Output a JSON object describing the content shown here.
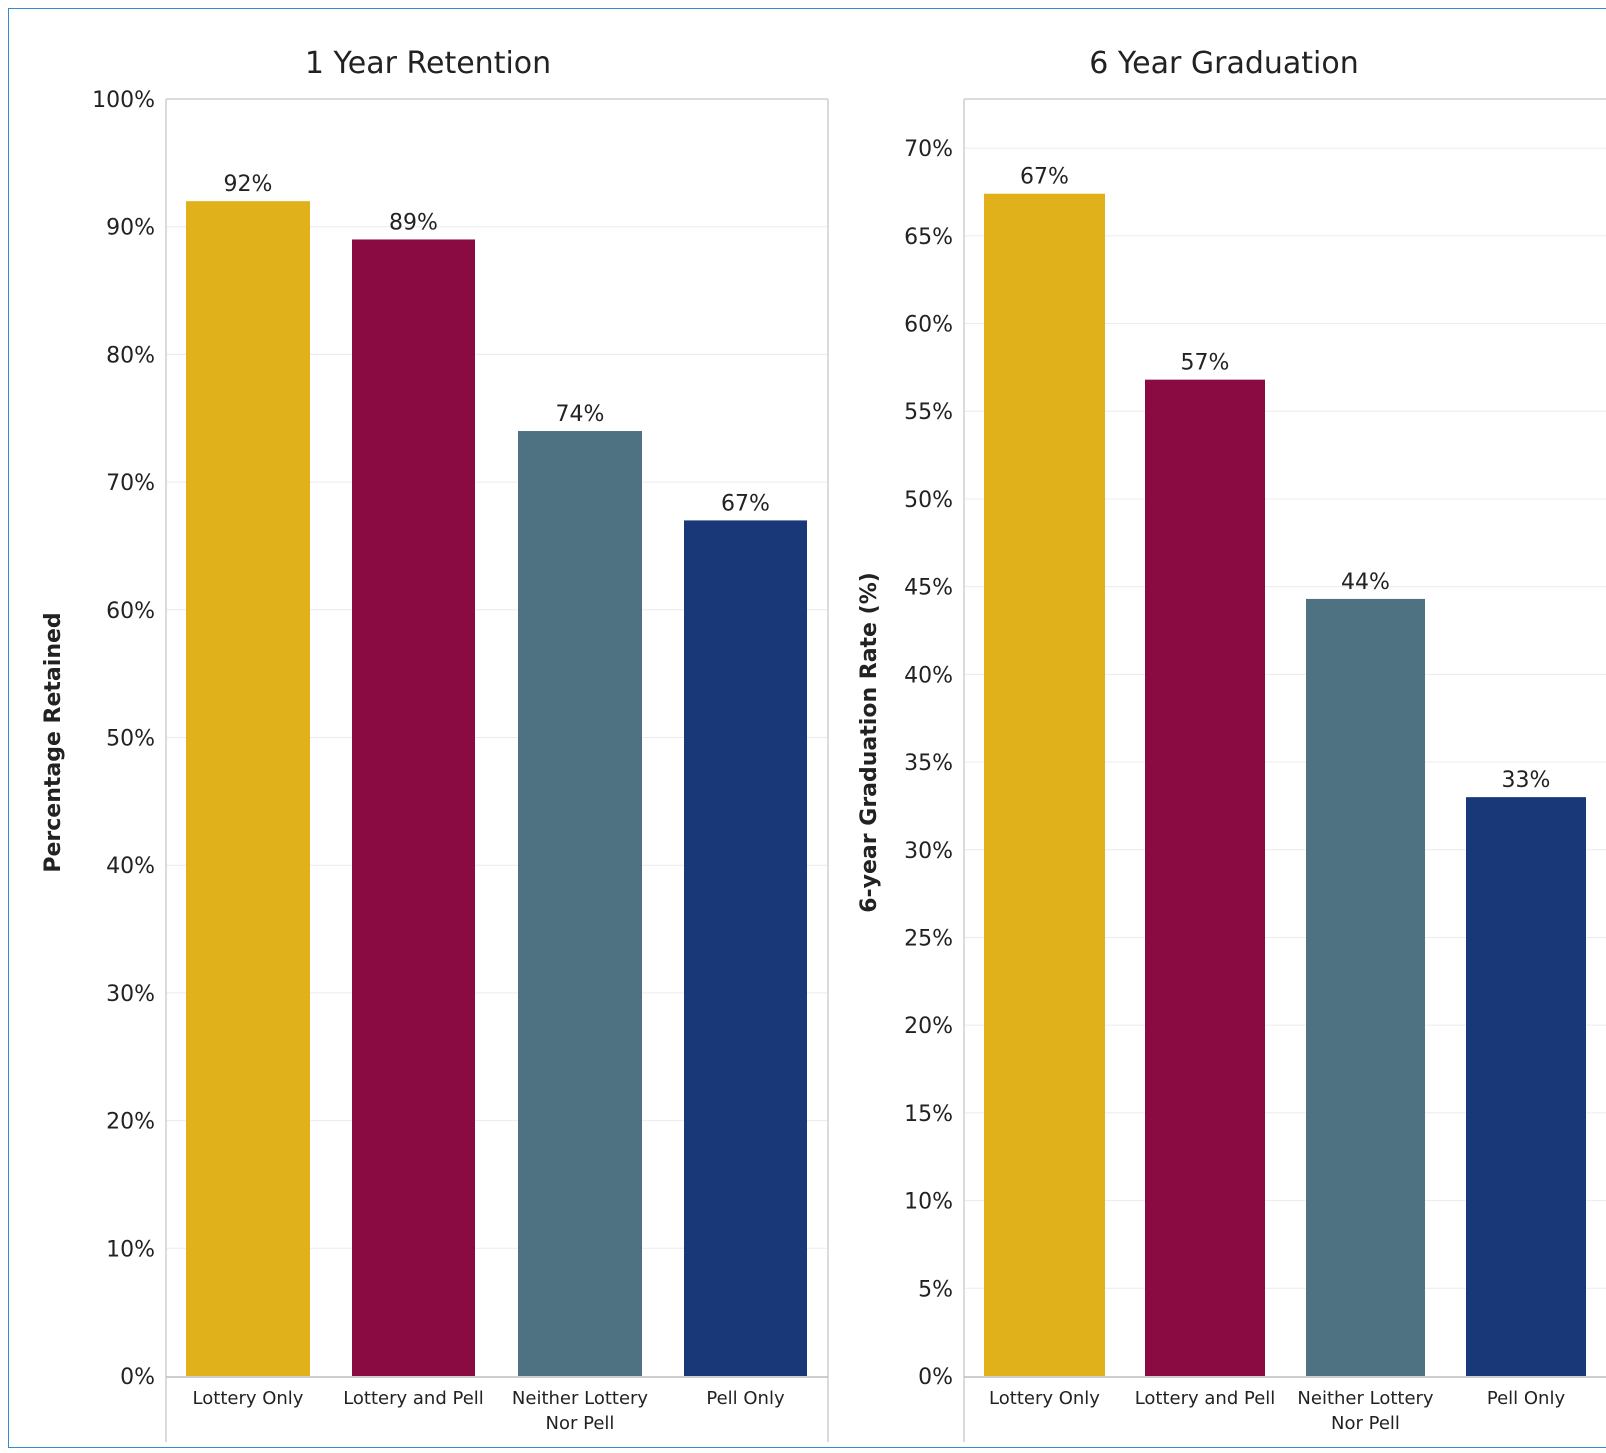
{
  "chart_data": [
    {
      "type": "bar",
      "title": "1 Year Retention",
      "ylabel": "Percentage Retained",
      "xlabel": "",
      "categories": [
        "Lottery Only",
        "Lottery and Pell",
        "Neither Lottery Nor Pell",
        "Pell Only"
      ],
      "category_lines": [
        [
          "Lottery Only"
        ],
        [
          "Lottery and Pell"
        ],
        [
          "Neither Lottery",
          "Nor Pell"
        ],
        [
          "Pell Only"
        ]
      ],
      "values": [
        92,
        89,
        74,
        67
      ],
      "value_labels": [
        "92%",
        "89%",
        "74%",
        "67%"
      ],
      "ylim": [
        0,
        100
      ],
      "yticks": [
        0,
        10,
        20,
        30,
        40,
        50,
        60,
        70,
        80,
        90,
        100
      ],
      "ytick_labels": [
        "0%",
        "10%",
        "20%",
        "30%",
        "40%",
        "50%",
        "60%",
        "70%",
        "80%",
        "90%",
        "100%"
      ],
      "grid": true
    },
    {
      "type": "bar",
      "title": "6 Year Graduation",
      "ylabel": "6-year Graduation Rate (%)",
      "xlabel": "",
      "categories": [
        "Lottery Only",
        "Lottery and Pell",
        "Neither Lottery Nor Pell",
        "Pell Only"
      ],
      "category_lines": [
        [
          "Lottery Only"
        ],
        [
          "Lottery and Pell"
        ],
        [
          "Neither Lottery",
          "Nor Pell"
        ],
        [
          "Pell Only"
        ]
      ],
      "values": [
        67.4,
        56.8,
        44.3,
        33.0
      ],
      "value_labels": [
        "67%",
        "57%",
        "44%",
        "33%"
      ],
      "ylim": [
        0,
        72.8
      ],
      "yticks": [
        0,
        5,
        10,
        15,
        20,
        25,
        30,
        35,
        40,
        45,
        50,
        55,
        60,
        65,
        70
      ],
      "ytick_labels": [
        "0%",
        "5%",
        "10%",
        "15%",
        "20%",
        "25%",
        "30%",
        "35%",
        "40%",
        "45%",
        "50%",
        "55%",
        "60%",
        "65%",
        "70%"
      ],
      "grid": true
    }
  ],
  "colors": {
    "categories": [
      "#e0b11a",
      "#8a0b41",
      "#4f7283",
      "#183878"
    ],
    "frame": "#3a87c9",
    "grid": "#ececec",
    "axis_line": "#cfcfcf",
    "text": "#222222"
  }
}
